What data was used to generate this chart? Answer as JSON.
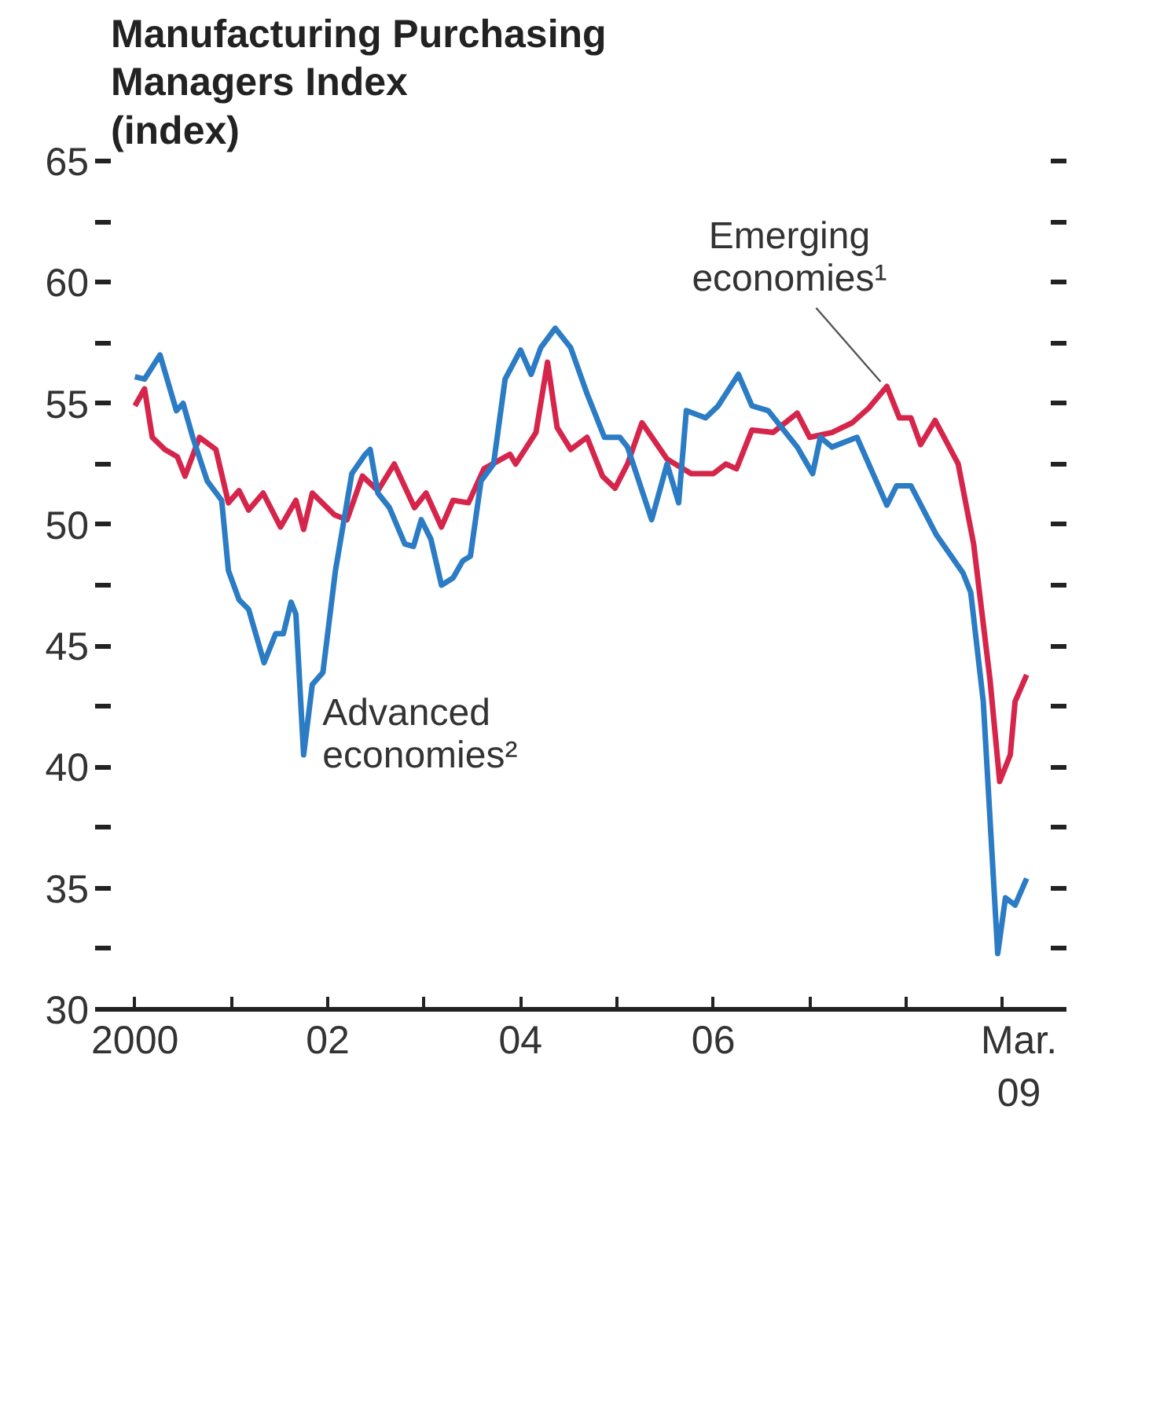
{
  "chart_data": {
    "type": "line",
    "title": "Manufacturing Purchasing\nManagers Index\n(index)",
    "series": [
      {
        "color": "#d6254b",
        "x": [
          2000.0,
          2000.1,
          2000.18,
          2000.31,
          2000.44,
          2000.52,
          2000.67,
          2000.84,
          2000.97,
          2001.08,
          2001.18,
          2001.33,
          2001.51,
          2001.67,
          2001.75,
          2001.84,
          2002.07,
          2002.2,
          2002.36,
          2002.52,
          2002.69,
          2002.9,
          2003.02,
          2003.18,
          2003.3,
          2003.46,
          2003.62,
          2003.89,
          2003.95,
          2004.16,
          2004.28,
          2004.38,
          2004.52,
          2004.69,
          2004.85,
          2004.98,
          2005.11,
          2005.26,
          2005.52,
          2005.77,
          2006.0,
          2006.13,
          2006.24,
          2006.4,
          2006.62,
          2006.87,
          2007.0,
          2007.23,
          2007.44,
          2007.61,
          2007.8,
          2007.93,
          2008.05,
          2008.15,
          2008.3,
          2008.54,
          2008.7,
          2008.87,
          2008.97,
          2009.08,
          2009.13,
          2009.25
        ],
        "values": [
          54.9,
          55.6,
          53.6,
          53.1,
          52.8,
          52.0,
          53.6,
          53.1,
          50.9,
          51.4,
          50.6,
          51.3,
          49.9,
          51.0,
          49.8,
          51.3,
          50.4,
          50.2,
          52.0,
          51.4,
          52.5,
          50.7,
          51.3,
          49.9,
          51.0,
          50.9,
          52.3,
          52.9,
          52.5,
          53.8,
          56.7,
          54.0,
          53.1,
          53.6,
          52.0,
          51.5,
          52.5,
          54.2,
          52.7,
          52.1,
          52.1,
          52.5,
          52.3,
          53.9,
          53.8,
          54.6,
          53.6,
          53.8,
          54.2,
          54.8,
          55.7,
          54.4,
          54.4,
          53.3,
          54.3,
          52.5,
          49.2,
          43.6,
          39.4,
          40.5,
          42.7,
          43.8
        ]
      },
      {
        "color": "#2b7cc4",
        "x": [
          2000.0,
          2000.1,
          2000.26,
          2000.43,
          2000.5,
          2000.6,
          2000.75,
          2000.9,
          2000.97,
          2001.08,
          2001.18,
          2001.34,
          2001.46,
          2001.54,
          2001.62,
          2001.67,
          2001.75,
          2001.84,
          2001.95,
          2002.08,
          2002.25,
          2002.39,
          2002.44,
          2002.52,
          2002.64,
          2002.8,
          2002.89,
          2002.97,
          2003.07,
          2003.18,
          2003.3,
          2003.4,
          2003.48,
          2003.59,
          2003.72,
          2003.84,
          2004.0,
          2004.11,
          2004.21,
          2004.36,
          2004.52,
          2004.69,
          2004.87,
          2005.03,
          2005.11,
          2005.36,
          2005.52,
          2005.64,
          2005.72,
          2005.92,
          2006.05,
          2006.26,
          2006.4,
          2006.57,
          2006.87,
          2007.03,
          2007.11,
          2007.23,
          2007.49,
          2007.8,
          2007.9,
          2008.05,
          2008.31,
          2008.59,
          2008.67,
          2008.8,
          2008.95,
          2009.03,
          2009.13,
          2009.25
        ],
        "values": [
          56.1,
          56.0,
          57.0,
          54.7,
          55.0,
          53.6,
          51.8,
          51.0,
          48.1,
          46.9,
          46.5,
          44.3,
          45.5,
          45.5,
          46.8,
          46.3,
          40.5,
          43.4,
          43.9,
          48.1,
          52.1,
          52.9,
          53.1,
          51.3,
          50.7,
          49.2,
          49.1,
          50.2,
          49.4,
          47.5,
          47.8,
          48.5,
          48.7,
          51.8,
          52.5,
          56.0,
          57.2,
          56.2,
          57.3,
          58.1,
          57.3,
          55.4,
          53.6,
          53.6,
          53.2,
          50.2,
          52.5,
          50.9,
          54.7,
          54.4,
          54.9,
          56.2,
          54.9,
          54.7,
          53.2,
          52.1,
          53.6,
          53.2,
          53.6,
          50.8,
          51.6,
          51.6,
          49.6,
          48.0,
          47.2,
          42.7,
          32.3,
          34.6,
          34.3,
          35.4
        ]
      }
    ],
    "annotations": [
      {
        "text": "Emerging\neconomies¹",
        "x": 2007.8,
        "y": 55.7
      },
      {
        "text": "Advanced\neconomies²",
        "x": 2001.75,
        "y": 40.5
      }
    ],
    "xlim": [
      1999.75,
      2009.5
    ],
    "xticks": [
      {
        "value": 2000,
        "label": null
      },
      {
        "value": 2001,
        "label": null
      },
      {
        "value": 2002,
        "label": null
      },
      {
        "value": 2003,
        "label": null
      },
      {
        "value": 2004,
        "label": null
      },
      {
        "value": 2005,
        "label": null
      },
      {
        "value": 2006,
        "label": null
      },
      {
        "value": 2007,
        "label": null
      },
      {
        "value": 2008,
        "label": null
      },
      {
        "value": 2009,
        "label": null
      },
      {
        "value": 2000,
        "label": "2000"
      },
      {
        "value": 2002,
        "label": "02"
      },
      {
        "value": 2004,
        "label": "04"
      },
      {
        "value": 2006,
        "label": "06"
      },
      {
        "value": 2009.17,
        "label": "Mar.\n09"
      }
    ],
    "ylim": [
      30,
      65
    ],
    "yticks": [
      30,
      {
        "value": 32.5,
        "label": null
      },
      35,
      {
        "value": 37.5,
        "label": null
      },
      40,
      {
        "value": 42.5,
        "label": null
      },
      45,
      {
        "value": 47.5,
        "label": null
      },
      50,
      {
        "value": 52.5,
        "label": null
      },
      55,
      {
        "value": 57.5,
        "label": null
      },
      60,
      {
        "value": 62.5,
        "label": null
      },
      65
    ],
    "grid": false,
    "line_style": "solid"
  }
}
